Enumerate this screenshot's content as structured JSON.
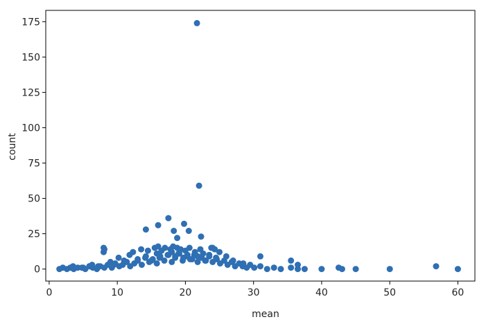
{
  "chart_data": {
    "type": "scatter",
    "xlabel": "mean",
    "ylabel": "count",
    "xlim": [
      -0.5,
      62.5
    ],
    "ylim": [
      -8.5,
      183
    ],
    "xticks": [
      0,
      10,
      20,
      30,
      40,
      50,
      60
    ],
    "yticks": [
      0,
      25,
      50,
      75,
      100,
      125,
      150,
      175
    ],
    "grid": false,
    "marker_color": "#2f6fb3",
    "x": [
      1.5,
      2.0,
      2.6,
      3.1,
      3.6,
      4.2,
      4.8,
      5.3,
      5.9,
      6.4,
      7.0,
      7.5,
      8.1,
      8.6,
      9.2,
      9.7,
      10.3,
      10.8,
      11.4,
      11.9,
      12.5,
      13.0,
      13.6,
      14.1,
      14.7,
      15.2,
      15.8,
      16.3,
      16.9,
      17.4,
      18.0,
      18.5,
      19.1,
      19.6,
      20.2,
      20.7,
      21.3,
      21.8,
      22.4,
      22.9,
      23.5,
      24.0,
      24.6,
      25.1,
      25.7,
      26.2,
      26.8,
      27.3,
      27.9,
      28.4,
      29.0,
      29.5,
      30.1,
      31.0,
      32.0,
      33.0,
      34.0,
      35.5,
      36.5,
      37.5,
      40.0,
      42.5,
      43.0,
      45.0,
      50.0,
      60.0,
      3.5,
      5.0,
      6.3,
      7.2,
      8.0,
      8.1,
      9.0,
      9.5,
      10.2,
      11.0,
      11.8,
      12.3,
      13.0,
      13.5,
      14.2,
      14.5,
      15.0,
      15.5,
      15.8,
      16.0,
      16.2,
      16.5,
      17.0,
      17.5,
      17.8,
      18.0,
      18.2,
      18.5,
      18.8,
      19.0,
      19.3,
      19.7,
      20.0,
      20.3,
      20.6,
      21.0,
      21.4,
      21.8,
      22.2,
      22.6,
      23.0,
      23.5,
      24.0,
      24.5,
      25.0,
      26.0,
      27.0,
      28.5,
      31.0,
      35.5,
      36.5,
      56.8,
      8.0,
      14.2,
      16.0,
      17.5,
      18.3,
      18.8,
      19.8,
      20.5,
      22.3,
      23.8,
      24.3,
      22.0,
      21.7
    ],
    "y": [
      0,
      1,
      0,
      1,
      0,
      1,
      1,
      0,
      2,
      1,
      0,
      2,
      1,
      3,
      1,
      4,
      2,
      3,
      5,
      2,
      4,
      6,
      3,
      8,
      5,
      7,
      4,
      9,
      6,
      10,
      5,
      8,
      11,
      6,
      9,
      7,
      10,
      5,
      8,
      6,
      9,
      5,
      7,
      4,
      6,
      3,
      5,
      2,
      4,
      2,
      1,
      3,
      1,
      2,
      0,
      1,
      0,
      1,
      0,
      0,
      0,
      1,
      0,
      0,
      0,
      0,
      2,
      1,
      3,
      2,
      12,
      14,
      5,
      3,
      8,
      6,
      10,
      12,
      7,
      14,
      9,
      13,
      6,
      15,
      11,
      16,
      8,
      13,
      15,
      10,
      14,
      12,
      16,
      9,
      15,
      11,
      14,
      8,
      13,
      10,
      15,
      7,
      12,
      9,
      14,
      11,
      6,
      10,
      15,
      8,
      12,
      9,
      6,
      4,
      9,
      6,
      3,
      2,
      15,
      28,
      31,
      36,
      27,
      22,
      32,
      27,
      23,
      15,
      14,
      59,
      174
    ]
  }
}
